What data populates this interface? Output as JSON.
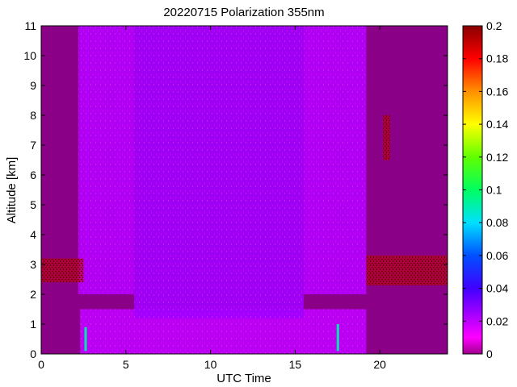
{
  "chart_data": {
    "type": "heatmap",
    "title": "20220715 Polarization 355nm",
    "xlabel": "UTC Time",
    "ylabel": "Altitude [km]",
    "xlim": [
      0,
      24
    ],
    "ylim": [
      0,
      11
    ],
    "x_ticks": [
      0,
      5,
      10,
      15,
      20
    ],
    "y_ticks": [
      0,
      1,
      2,
      3,
      4,
      5,
      6,
      7,
      8,
      9,
      10,
      11
    ],
    "colorbar": {
      "range": [
        0,
        0.2
      ],
      "ticks": [
        0,
        0.02,
        0.04,
        0.06,
        0.08,
        0.1,
        0.12,
        0.14,
        0.16,
        0.18,
        0.2
      ],
      "colormap": "hsv-like (magenta to red)"
    },
    "background_value": 0.01,
    "features": [
      {
        "x": [
          2.3,
          19.2
        ],
        "y": [
          0,
          1.5
        ],
        "value": 0.02
      },
      {
        "x": [
          5.5,
          15.5
        ],
        "y": [
          1.2,
          11
        ],
        "value": 0.025
      },
      {
        "x": [
          2.2,
          5.5
        ],
        "y": [
          2,
          11
        ],
        "value": 0.022
      },
      {
        "x": [
          15.5,
          19.2
        ],
        "y": [
          2,
          11
        ],
        "value": 0.022
      },
      {
        "x": [
          0,
          2.5
        ],
        "y": [
          2.4,
          3.2
        ],
        "value": 0.19
      },
      {
        "x": [
          19.2,
          24
        ],
        "y": [
          2.3,
          3.3
        ],
        "value": 0.19
      },
      {
        "x": [
          20.2,
          20.6
        ],
        "y": [
          6.5,
          8.0
        ],
        "value": 0.19
      },
      {
        "x": [
          2.55,
          2.7
        ],
        "y": [
          0.1,
          0.9
        ],
        "value": 0.09
      },
      {
        "x": [
          17.45,
          17.6
        ],
        "y": [
          0.1,
          1.0
        ],
        "value": 0.09
      }
    ],
    "grid": false,
    "colorbar_location": "right"
  },
  "colors": {
    "background_plot": "#8a0087",
    "axis": "#000000"
  }
}
